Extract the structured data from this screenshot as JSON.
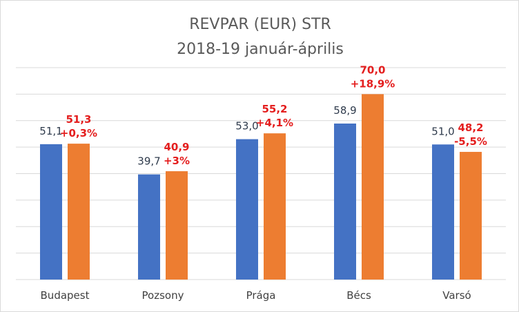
{
  "chart_data": {
    "type": "bar",
    "title": "REVPAR (EUR) STR",
    "subtitle": "2018-19 január-április",
    "categories": [
      "Budapest",
      "Pozsony",
      "Prága",
      "Bécs",
      "Varsó"
    ],
    "series": [
      {
        "values": [
          51.1,
          39.7,
          53.0,
          58.9,
          51.0
        ],
        "labels": [
          "51,1",
          "39,7",
          "53,0",
          "58,9",
          "51,0"
        ],
        "color": "#4472c4",
        "label_color": "#2f3b4c"
      },
      {
        "values": [
          51.3,
          40.9,
          55.2,
          70.0,
          48.2
        ],
        "labels": [
          "51,3",
          "40,9",
          "55,2",
          "70,0",
          "48,2"
        ],
        "changes": [
          "+0,3%",
          "+3%",
          "+4,1%",
          "+18,9%",
          "-5,5%"
        ],
        "color": "#ed7d31",
        "label_color": "#e41e1e"
      }
    ],
    "ylim": [
      0,
      80
    ],
    "gridlines": true,
    "grid_color": "#d9d9d9",
    "legend": "none"
  }
}
